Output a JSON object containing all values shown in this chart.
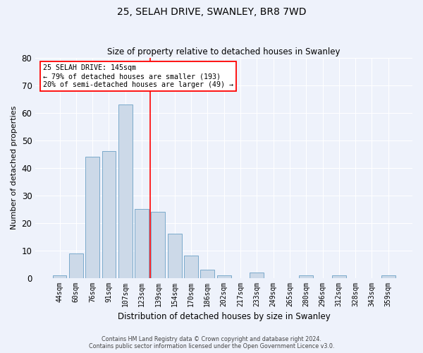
{
  "title": "25, SELAH DRIVE, SWANLEY, BR8 7WD",
  "subtitle": "Size of property relative to detached houses in Swanley",
  "xlabel": "Distribution of detached houses by size in Swanley",
  "ylabel": "Number of detached properties",
  "bar_color": "#ccd9e8",
  "bar_edge_color": "#7aaacb",
  "background_color": "#eef2fb",
  "grid_color": "#ffffff",
  "categories": [
    "44sqm",
    "60sqm",
    "76sqm",
    "91sqm",
    "107sqm",
    "123sqm",
    "139sqm",
    "154sqm",
    "170sqm",
    "186sqm",
    "202sqm",
    "217sqm",
    "233sqm",
    "249sqm",
    "265sqm",
    "280sqm",
    "296sqm",
    "312sqm",
    "328sqm",
    "343sqm",
    "359sqm"
  ],
  "values": [
    1,
    9,
    44,
    46,
    63,
    25,
    24,
    16,
    8,
    3,
    1,
    0,
    2,
    0,
    0,
    1,
    0,
    1,
    0,
    0,
    1
  ],
  "ylim": [
    0,
    80
  ],
  "yticks": [
    0,
    10,
    20,
    30,
    40,
    50,
    60,
    70,
    80
  ],
  "property_label": "25 SELAH DRIVE: 145sqm",
  "pct_smaller": "79% of detached houses are smaller (193)",
  "pct_larger": "20% of semi-detached houses are larger (49)",
  "vline_index": 5.5,
  "footer_line1": "Contains HM Land Registry data © Crown copyright and database right 2024.",
  "footer_line2": "Contains public sector information licensed under the Open Government Licence v3.0."
}
